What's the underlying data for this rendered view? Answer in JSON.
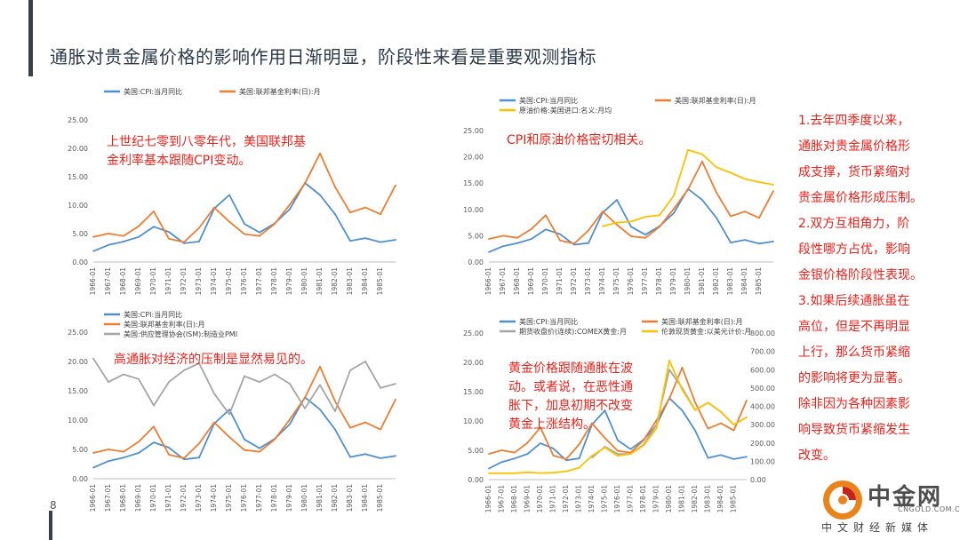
{
  "page": {
    "title": "通胀对贵金属价格的影响作用日渐明显，阶段性来看是重要观测指标",
    "page_number": "8"
  },
  "annotations": {
    "chart1_line1": "上世纪七零到八零年代，美国联邦基",
    "chart1_line2": "金利率基本跟随CPI变动。",
    "chart2_line1": "CPI和原油价格密切相关。",
    "chart3_line1": "高通胀对经济的压制是显然易见的。",
    "chart4_line1": "黄金价格跟随通胀在波",
    "chart4_line2": "动。或者说，在恶性通",
    "chart4_line3": "胀下，加息初期不改变",
    "chart4_line4": "黄金上涨结构。"
  },
  "side_notes": [
    "1.去年四季度以来，",
    "通胀对贵金属价格形",
    "成支撑，货币紧缩对",
    "贵金属价格形成压制。",
    "2.双方互相角力，阶",
    "段性哪方占优，影响",
    "金银价格阶段性表现。",
    "3.如果后续通胀虽在",
    "高位，但是不再明显",
    "上行，那么货币紧缩",
    "的影响将更为显著。",
    "除非因为各种因素影",
    "响导致货币紧缩发生",
    "改变。"
  ],
  "watermark": {
    "name": "中金网",
    "url": "CNGOLD.COM.CN",
    "subtitle": "中文财经新媒体"
  },
  "colors": {
    "cpi": "#4f90d0",
    "fed": "#ed7d31",
    "oil": "#ffc000",
    "pmi": "#a5a5a5",
    "gold": "#ffc000",
    "silver": "#a5a5a5",
    "annotation": "#e8221b",
    "title": "#2d3a4a"
  },
  "chart_data": [
    {
      "type": "line",
      "x": [
        "1966-01",
        "1967-01",
        "1968-01",
        "1969-01",
        "1970-01",
        "1971-01",
        "1972-01",
        "1973-01",
        "1974-01",
        "1975-01",
        "1976-01",
        "1977-01",
        "1978-01",
        "1979-01",
        "1980-01",
        "1981-01",
        "1982-01",
        "1983-01",
        "1984-01",
        "1985-01",
        "1986-01"
      ],
      "xticks": [
        "1966-01",
        "1967-01",
        "1968-01",
        "1969-01",
        "1970-01",
        "1971-01",
        "1972-01",
        "1973-01",
        "1974-01",
        "1975-01",
        "1976-01",
        "1977-01",
        "1978-01",
        "1979-01",
        "1980-01",
        "1981-01",
        "1982-01",
        "1983-01",
        "1984-01",
        "1985-01"
      ],
      "yticks": [
        "0.00",
        "5.00",
        "10.00",
        "15.00",
        "20.00",
        "25.00"
      ],
      "ylim": [
        0,
        25
      ],
      "legend": "top",
      "grid": false,
      "series": [
        {
          "name": "美国:CPI:当月同比",
          "axis": "left",
          "values": [
            1.9,
            3.0,
            3.6,
            4.4,
            6.2,
            5.3,
            3.3,
            3.6,
            9.4,
            11.8,
            6.7,
            5.2,
            6.8,
            9.3,
            13.9,
            11.8,
            8.4,
            3.7,
            4.2,
            3.5,
            3.9
          ]
        },
        {
          "name": "美国:联邦基金利率(日):月",
          "axis": "left",
          "values": [
            4.4,
            5.0,
            4.6,
            6.3,
            8.9,
            4.1,
            3.5,
            6.0,
            9.6,
            7.1,
            4.9,
            4.6,
            6.7,
            10.1,
            13.8,
            19.1,
            13.2,
            8.7,
            9.6,
            8.4,
            13.5
          ]
        }
      ]
    },
    {
      "type": "line",
      "x": [
        "1966-01",
        "1967-01",
        "1968-01",
        "1969-01",
        "1970-01",
        "1971-01",
        "1972-01",
        "1973-01",
        "1974-01",
        "1975-01",
        "1976-01",
        "1977-01",
        "1978-01",
        "1979-01",
        "1980-01",
        "1981-01",
        "1982-01",
        "1983-01",
        "1984-01",
        "1985-01",
        "1986-01"
      ],
      "xticks": [
        "1966-01",
        "1967-01",
        "1968-01",
        "1969-01",
        "1970-01",
        "1971-01",
        "1972-01",
        "1973-01",
        "1974-01",
        "1975-01",
        "1976-01",
        "1977-01",
        "1978-01",
        "1979-01",
        "1980-01",
        "1981-01",
        "1982-01",
        "1983-01",
        "1984-01",
        "1985-01"
      ],
      "yticks": [
        "0.00",
        "5.00",
        "10.00",
        "15.00",
        "20.00",
        "25.00"
      ],
      "ylim": [
        0,
        25
      ],
      "legend": "top",
      "grid": false,
      "series": [
        {
          "name": "美国:CPI:当月同比",
          "axis": "left",
          "values": [
            1.9,
            3.0,
            3.6,
            4.4,
            6.2,
            5.3,
            3.3,
            3.6,
            9.4,
            11.8,
            6.7,
            5.2,
            6.8,
            9.3,
            13.9,
            11.8,
            8.4,
            3.7,
            4.2,
            3.5,
            3.9
          ]
        },
        {
          "name": "美国:联邦基金利率(日):月",
          "axis": "left",
          "values": [
            4.4,
            5.0,
            4.6,
            6.3,
            8.9,
            4.1,
            3.5,
            6.0,
            9.6,
            7.1,
            4.9,
            4.6,
            6.7,
            10.1,
            13.8,
            19.1,
            13.2,
            8.7,
            9.6,
            8.4,
            13.5
          ]
        },
        {
          "name": "原油价格:美国进口:名义:月均",
          "axis": "left",
          "values": [
            null,
            null,
            null,
            null,
            null,
            null,
            null,
            null,
            6.8,
            7.5,
            7.7,
            8.6,
            8.9,
            12.6,
            21.3,
            20.5,
            18.0,
            17.0,
            15.8,
            15.2,
            14.7
          ]
        }
      ]
    },
    {
      "type": "line",
      "x": [
        "1966-01",
        "1967-01",
        "1968-01",
        "1969-01",
        "1970-01",
        "1971-01",
        "1972-01",
        "1973-01",
        "1974-01",
        "1975-01",
        "1976-01",
        "1977-01",
        "1978-01",
        "1979-01",
        "1980-01",
        "1981-01",
        "1982-01",
        "1983-01",
        "1984-01",
        "1985-01",
        "1986-01"
      ],
      "xticks": [
        "1966-01",
        "1967-01",
        "1968-01",
        "1969-01",
        "1970-01",
        "1971-01",
        "1972-01",
        "1973-01",
        "1974-01",
        "1975-01",
        "1976-01",
        "1977-01",
        "1978-01",
        "1979-01",
        "1980-01",
        "1981-01",
        "1982-01",
        "1983-01",
        "1984-01",
        "1985-01"
      ],
      "yticks": [
        "0.00",
        "5.00",
        "10.00",
        "15.00",
        "20.00",
        "25.00"
      ],
      "ylim": [
        0,
        25
      ],
      "legend": "top",
      "grid": false,
      "series": [
        {
          "name": "美国:CPI:当月同比",
          "axis": "left",
          "values": [
            1.9,
            3.0,
            3.6,
            4.4,
            6.2,
            5.3,
            3.3,
            3.6,
            9.4,
            11.8,
            6.7,
            5.2,
            6.8,
            9.3,
            13.9,
            11.8,
            8.4,
            3.7,
            4.2,
            3.5,
            3.9
          ]
        },
        {
          "name": "美国:联邦基金利率(日):月",
          "axis": "left",
          "values": [
            4.4,
            5.0,
            4.6,
            6.3,
            8.9,
            4.1,
            3.5,
            6.0,
            9.6,
            7.1,
            4.9,
            4.6,
            6.7,
            10.1,
            13.8,
            19.1,
            13.2,
            8.7,
            9.6,
            8.4,
            13.5
          ]
        },
        {
          "name": "美国:供应管理协会(ISM):制造业PMI",
          "axis": "left",
          "values": [
            20.5,
            16.5,
            17.8,
            17.0,
            12.5,
            16.5,
            18.5,
            19.7,
            14.5,
            11.0,
            17.5,
            16.5,
            17.8,
            16.2,
            12.0,
            16.0,
            11.5,
            18.5,
            20.0,
            15.5,
            16.2
          ]
        }
      ]
    },
    {
      "type": "line",
      "x": [
        "1966-01",
        "1967-01",
        "1968-01",
        "1969-01",
        "1970-01",
        "1971-01",
        "1972-01",
        "1973-01",
        "1974-01",
        "1975-01",
        "1976-01",
        "1977-01",
        "1978-01",
        "1979-01",
        "1980-01",
        "1981-01",
        "1982-01",
        "1983-01",
        "1984-01",
        "1985-01",
        "1986-01"
      ],
      "xticks": [
        "1966-01",
        "1967-01",
        "1968-01",
        "1969-01",
        "1970-01",
        "1971-01",
        "1972-01",
        "1973-01",
        "1974-01",
        "1975-01",
        "1976-01",
        "1977-01",
        "1978-01",
        "1979-01",
        "1980-01",
        "1981-01",
        "1982-01",
        "1983-01",
        "1984-01",
        "1985-01"
      ],
      "yticks": [
        "0.00",
        "5.00",
        "10.00",
        "15.00",
        "20.00",
        "25.00"
      ],
      "y2ticks": [
        "0.00",
        "100.00",
        "200.00",
        "300.00",
        "400.00",
        "500.00",
        "600.00",
        "700.00",
        "800.00"
      ],
      "ylim": [
        0,
        25
      ],
      "y2lim": [
        0,
        800
      ],
      "legend": "top",
      "grid": false,
      "series": [
        {
          "name": "美国:CPI:当月同比",
          "axis": "left",
          "values": [
            1.9,
            3.0,
            3.6,
            4.4,
            6.2,
            5.3,
            3.3,
            3.6,
            9.4,
            11.8,
            6.7,
            5.2,
            6.8,
            9.3,
            13.9,
            11.8,
            8.4,
            3.7,
            4.2,
            3.5,
            3.9
          ]
        },
        {
          "name": "美国:联邦基金利率(日):月",
          "axis": "left",
          "values": [
            4.4,
            5.0,
            4.6,
            6.3,
            8.9,
            4.1,
            3.5,
            6.0,
            9.6,
            7.1,
            4.9,
            4.6,
            6.7,
            10.1,
            13.8,
            19.1,
            13.2,
            8.7,
            9.6,
            8.4,
            13.5
          ]
        },
        {
          "name": "期货收盘价(连续):COMEX黄金:月",
          "axis": "right",
          "values": [
            null,
            null,
            null,
            null,
            null,
            null,
            null,
            null,
            120,
            180,
            140,
            140,
            190,
            300,
            600,
            500,
            380,
            420,
            370,
            300,
            340
          ]
        },
        {
          "name": "伦敦现货黄金:以美元计价:月",
          "axis": "right",
          "values": [
            35,
            35,
            35,
            40,
            36,
            38,
            45,
            65,
            130,
            175,
            130,
            140,
            185,
            280,
            650,
            490,
            380,
            420,
            370,
            300,
            340
          ]
        }
      ]
    }
  ]
}
